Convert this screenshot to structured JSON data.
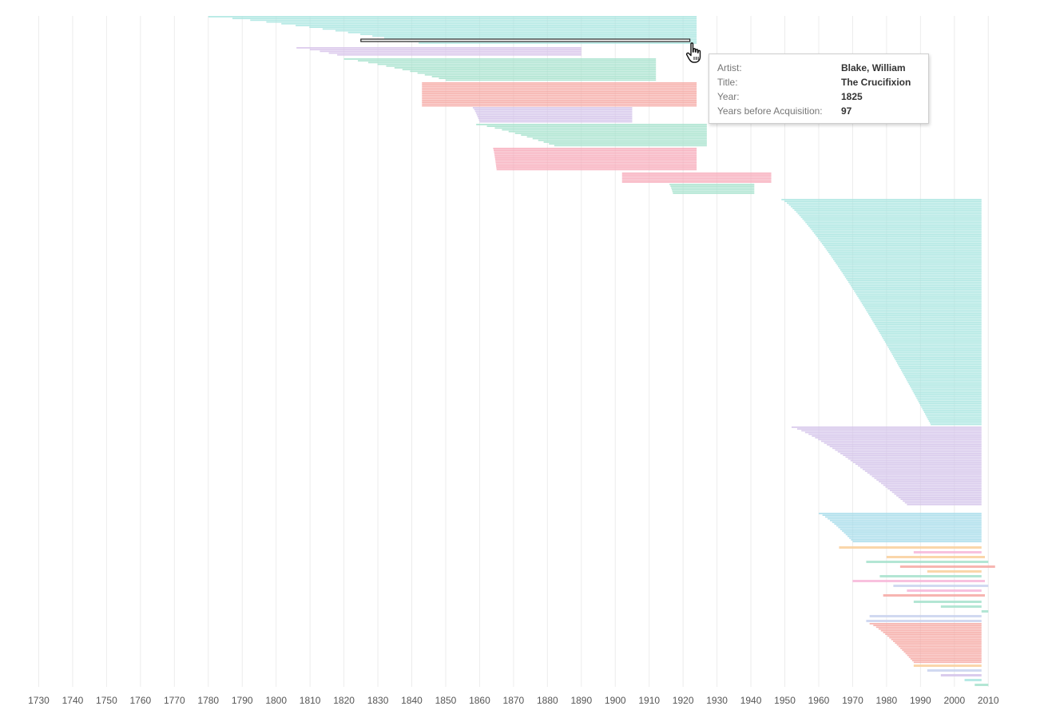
{
  "chart_data": {
    "type": "bar",
    "subtype": "floating-horizontal-range",
    "description_of_encoding": "",
    "xlim": [
      1728,
      2013
    ],
    "x_ticks": [
      "1730",
      "1740",
      "1750",
      "1760",
      "1770",
      "1780",
      "1790",
      "1800",
      "1810",
      "1820",
      "1830",
      "1840",
      "1850",
      "1860",
      "1870",
      "1880",
      "1890",
      "1900",
      "1910",
      "1920",
      "1930",
      "1940",
      "1950",
      "1960",
      "1970",
      "1980",
      "1990",
      "2000",
      "2010"
    ],
    "grid": "vertical",
    "groups": [
      {
        "color": "#a9e5e0",
        "start_min": 1780,
        "start_max": 1842,
        "end": 1924
      },
      {
        "color": "#d7c3ea",
        "start_min": 1806,
        "start_max": 1818,
        "end": 1890
      },
      {
        "color": "#a6e2cd",
        "start_min": 1820,
        "start_max": 1850,
        "end": 1912
      },
      {
        "color": "#f6a8a3",
        "start_min": 1843,
        "start_max": 1843,
        "end": 1924
      },
      {
        "color": "#d3c3ea",
        "start_min": 1858,
        "start_max": 1860,
        "end": 1905
      },
      {
        "color": "#a6e2cd",
        "start_min": 1859,
        "start_max": 1882,
        "end": 1927
      },
      {
        "color": "#f7a9b8",
        "start_min": 1864,
        "start_max": 1865,
        "end": 1924
      },
      {
        "color": "#f7a9b8",
        "start_min": 1902,
        "start_max": 1902,
        "end": 1946
      },
      {
        "color": "#a6e2cd",
        "start_min": 1916,
        "start_max": 1917,
        "end": 1941
      },
      {
        "color": "#a9e5e0",
        "start_min": 1949,
        "start_max": 1993,
        "end": 2008
      },
      {
        "color": "#d3c3ea",
        "start_min": 1952,
        "start_max": 1986,
        "end": 2008
      },
      {
        "color": "#a6dcea",
        "start_min": 1960,
        "start_max": 1970,
        "end": 2008
      },
      {
        "color": "#f6a8a3",
        "start_min": 1975,
        "start_max": 1988,
        "end": 2008
      }
    ],
    "highlighted_mark": {
      "artist": "Blake, William",
      "title": "The Crucifixion",
      "year": 1825,
      "years_before_acquisition": 97
    }
  },
  "tooltip": {
    "rows": [
      {
        "label": "Artist:",
        "value": "Blake, William"
      },
      {
        "label": "Title:",
        "value": "The Crucifixion"
      },
      {
        "label": "Year:",
        "value": "1825"
      },
      {
        "label": "Years before Acquisition:",
        "value": "97"
      }
    ]
  },
  "cursor": {
    "icon": "hand-pointer-icon"
  }
}
